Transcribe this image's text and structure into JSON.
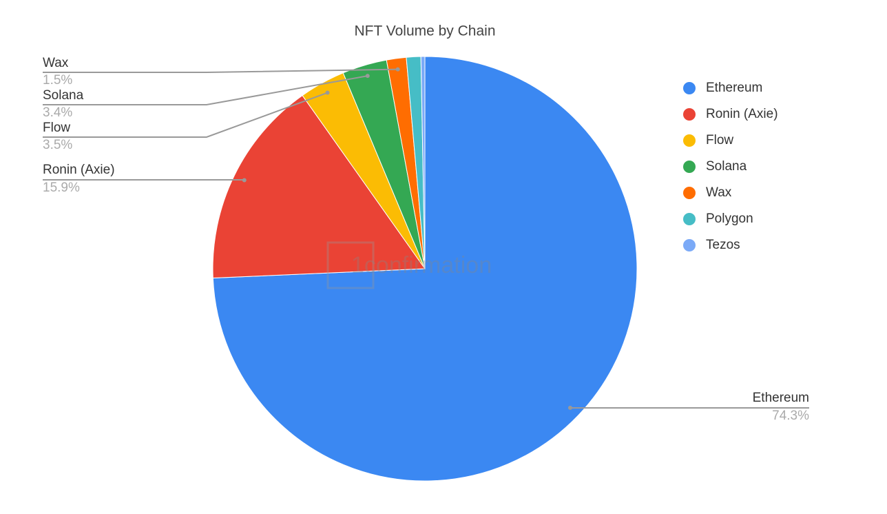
{
  "chart_data": {
    "type": "pie",
    "title": "NFT Volume by Chain",
    "categories": [
      "Ethereum",
      "Ronin (Axie)",
      "Flow",
      "Solana",
      "Wax",
      "Polygon",
      "Tezos"
    ],
    "values": [
      74.3,
      15.9,
      3.5,
      3.4,
      1.5,
      1.1,
      0.3
    ],
    "value_labels": [
      "74.3%",
      "15.9%",
      "3.5%",
      "3.4%",
      "1.5%",
      null,
      null
    ],
    "colors": [
      "#3b88f2",
      "#ea4335",
      "#fbbc04",
      "#34a853",
      "#ff6d01",
      "#46bdc6",
      "#7baaf7"
    ],
    "legend": "right",
    "watermark": "1confirmation"
  }
}
